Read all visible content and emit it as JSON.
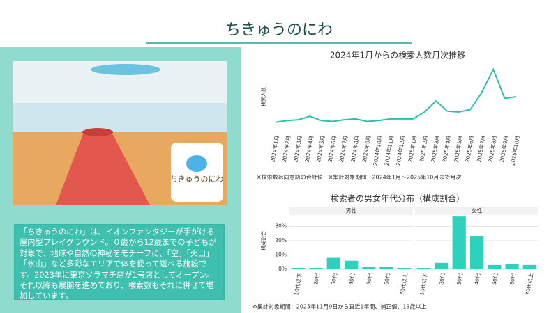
{
  "header": {
    "title": "ちきゅうのにわ"
  },
  "photo": {
    "logo": "ちきゅうのにわ"
  },
  "description": "「ちきゅうのにわ」は、イオンファンタジーが手がける屋内型プレイグラウンド。０歳から12歳までの子どもが対象で、地球や自然の神秘をモチーフに、「空」「火山」「氷山」など多彩なエリアで体を使って遊べる施設です。2023年に東京ソラマチ店が1号店としてオープン。それ以降も展開を進めており、検索数もそれに併せて増加しています。",
  "chart_data": [
    {
      "type": "line",
      "title": "2024年1月からの検索人数月次推移",
      "ylabel": "検索人数",
      "color": "#2bbfae",
      "categories": [
        "2024年1月",
        "2024年2月",
        "2024年3月",
        "2024年4月",
        "2024年5月",
        "2024年6月",
        "2024年7月",
        "2024年8月",
        "2024年9月",
        "2024年10月",
        "2024年11月",
        "2024年12月",
        "2025年1月",
        "2025年2月",
        "2025年3月",
        "2025年4月",
        "2025年5月",
        "2025年6月",
        "2025年7月",
        "2025年8月",
        "2025年9月",
        "2025年10月"
      ],
      "values": [
        10,
        12,
        13,
        17,
        12,
        11,
        13,
        14,
        11,
        12,
        14,
        14,
        14,
        22,
        35,
        23,
        22,
        25,
        45,
        72,
        38,
        40
      ],
      "ylim": [
        0,
        80
      ],
      "note": "※検索数は同意語の合計値　※集計対象期間：2024年1月～2025年10月まで月次"
    },
    {
      "type": "bar",
      "title": "検索者の男女年代分布（構成割合）",
      "ylabel": "構成割合",
      "color": "#2fd1bd",
      "categories": [
        "10代以下",
        "20代",
        "30代",
        "40代",
        "50代",
        "60代",
        "70代以上"
      ],
      "series": [
        {
          "name": "男性",
          "values": [
            0.5,
            1,
            8,
            6,
            1.5,
            1.5,
            1
          ]
        },
        {
          "name": "女性",
          "values": [
            0.5,
            4.5,
            37,
            23,
            3,
            3.5,
            3
          ]
        }
      ],
      "ylim": [
        0,
        40
      ],
      "yticks": [
        {
          "value": 0,
          "label": "0%"
        },
        {
          "value": 10,
          "label": "10%"
        },
        {
          "value": 20,
          "label": "20%"
        },
        {
          "value": 30,
          "label": "30%"
        }
      ],
      "grid": true,
      "note": "※集計対象期間：2025年11月9日から直近1年間、補正値、13歳以上"
    }
  ]
}
